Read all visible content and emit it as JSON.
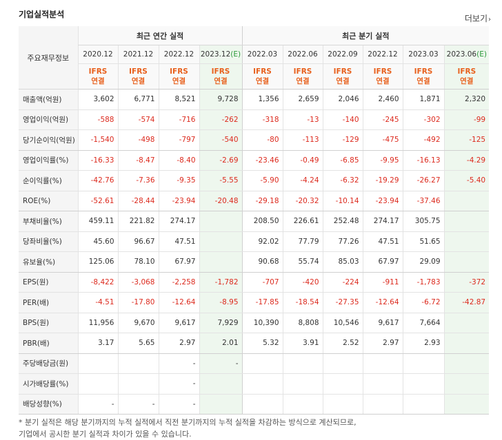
{
  "section_title": "기업실적분석",
  "more_label": "더보기",
  "more_arrow": "›",
  "header": {
    "row_label": "주요재무정보",
    "annual_group": "최근 연간 실적",
    "quarterly_group": "최근 분기 실적",
    "annual_periods": [
      {
        "text": "2020.12",
        "est": ""
      },
      {
        "text": "2021.12",
        "est": ""
      },
      {
        "text": "2022.12",
        "est": ""
      },
      {
        "text": "2023.12",
        "est": "(E)"
      }
    ],
    "quarterly_periods": [
      {
        "text": "2022.03",
        "est": ""
      },
      {
        "text": "2022.06",
        "est": ""
      },
      {
        "text": "2022.09",
        "est": ""
      },
      {
        "text": "2022.12",
        "est": ""
      },
      {
        "text": "2023.03",
        "est": ""
      },
      {
        "text": "2023.06",
        "est": "(E)"
      }
    ],
    "ifrs_line1": "IFRS",
    "ifrs_line2": "연결"
  },
  "rows": [
    {
      "label": "매출액(억원)",
      "values": [
        "3,602",
        "6,771",
        "8,521",
        "9,728",
        "1,356",
        "2,659",
        "2,046",
        "2,460",
        "1,871",
        "2,320"
      ]
    },
    {
      "label": "영업이익(억원)",
      "values": [
        "-588",
        "-574",
        "-716",
        "-262",
        "-318",
        "-13",
        "-140",
        "-245",
        "-302",
        "-99"
      ]
    },
    {
      "label": "당기순이익(억원)",
      "values": [
        "-1,540",
        "-498",
        "-797",
        "-540",
        "-80",
        "-113",
        "-129",
        "-475",
        "-492",
        "-125"
      ]
    },
    {
      "label": "영업이익률(%)",
      "values": [
        "-16.33",
        "-8.47",
        "-8.40",
        "-2.69",
        "-23.46",
        "-0.49",
        "-6.85",
        "-9.95",
        "-16.13",
        "-4.29"
      ]
    },
    {
      "label": "순이익률(%)",
      "values": [
        "-42.76",
        "-7.36",
        "-9.35",
        "-5.55",
        "-5.90",
        "-4.24",
        "-6.32",
        "-19.29",
        "-26.27",
        "-5.40"
      ]
    },
    {
      "label": "ROE(%)",
      "values": [
        "-52.61",
        "-28.44",
        "-23.94",
        "-20.48",
        "-29.18",
        "-20.32",
        "-10.14",
        "-23.94",
        "-37.46",
        ""
      ]
    },
    {
      "label": "부채비율(%)",
      "values": [
        "459.11",
        "221.82",
        "274.17",
        "",
        "208.50",
        "226.61",
        "252.48",
        "274.17",
        "305.75",
        ""
      ]
    },
    {
      "label": "당좌비율(%)",
      "values": [
        "45.60",
        "96.67",
        "47.51",
        "",
        "92.02",
        "77.79",
        "77.26",
        "47.51",
        "51.65",
        ""
      ]
    },
    {
      "label": "유보율(%)",
      "values": [
        "125.06",
        "78.10",
        "67.97",
        "",
        "90.68",
        "55.74",
        "85.03",
        "67.97",
        "29.09",
        ""
      ]
    },
    {
      "label": "EPS(원)",
      "values": [
        "-8,422",
        "-3,068",
        "-2,258",
        "-1,782",
        "-707",
        "-420",
        "-224",
        "-911",
        "-1,783",
        "-372"
      ]
    },
    {
      "label": "PER(배)",
      "values": [
        "-4.51",
        "-17.80",
        "-12.64",
        "-8.95",
        "-17.85",
        "-18.54",
        "-27.35",
        "-12.64",
        "-6.72",
        "-42.87"
      ]
    },
    {
      "label": "BPS(원)",
      "values": [
        "11,956",
        "9,670",
        "9,617",
        "7,929",
        "10,390",
        "8,808",
        "10,546",
        "9,617",
        "7,664",
        ""
      ]
    },
    {
      "label": "PBR(배)",
      "values": [
        "3.17",
        "5.65",
        "2.97",
        "2.01",
        "5.32",
        "3.91",
        "2.52",
        "2.97",
        "2.93",
        ""
      ]
    },
    {
      "label": "주당배당금(원)",
      "values": [
        "",
        "",
        "-",
        "-",
        "",
        "",
        "",
        "",
        "",
        ""
      ]
    },
    {
      "label": "시가배당률(%)",
      "values": [
        "",
        "",
        "-",
        "",
        "",
        "",
        "",
        "",
        "",
        ""
      ]
    },
    {
      "label": "배당성향(%)",
      "values": [
        "-",
        "-",
        "-",
        "",
        "",
        "",
        "",
        "",
        "",
        ""
      ]
    }
  ],
  "footnote": "* 분기 실적은 해당 분기까지의 누적 실적에서 직전 분기까지의 누적 실적을 차감하는 방식으로 계산되므로,",
  "footnote2": "기업에서 공시한 분기 실적과 차이가 있을 수 있습니다.",
  "colors": {
    "negative": "#dc2a1e",
    "ifrs": "#e8601c",
    "estimate_bg": "#eef7ee",
    "estimate_mark": "#2b9a3a"
  }
}
